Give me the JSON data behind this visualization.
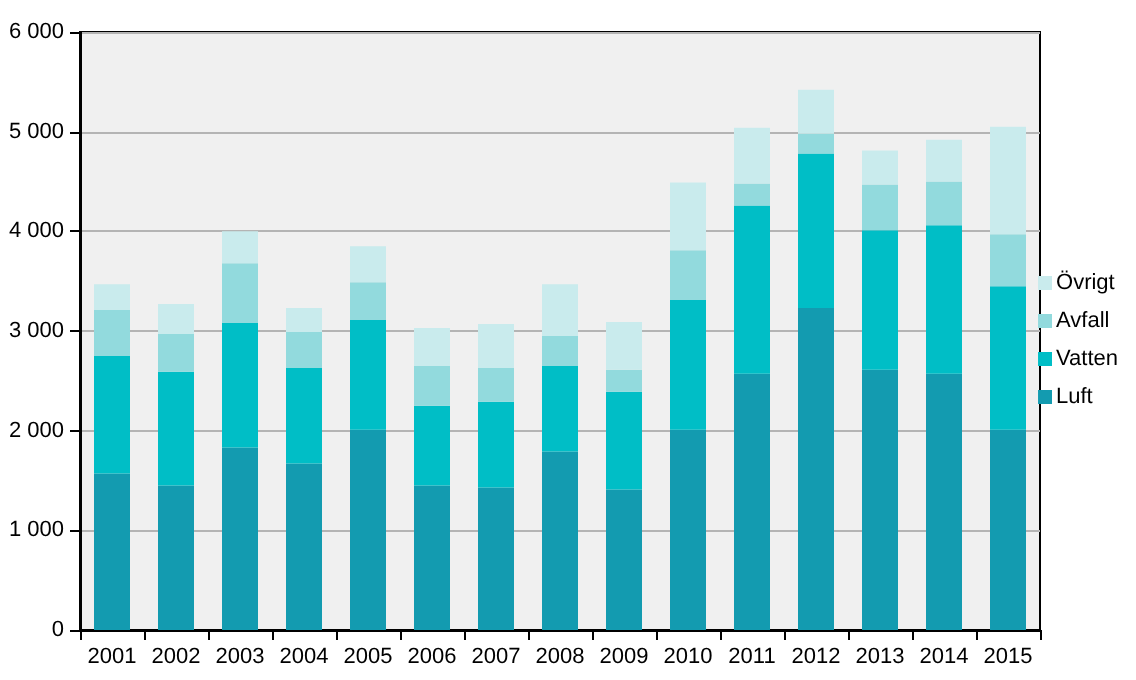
{
  "chart_data": {
    "type": "bar",
    "stacked": true,
    "categories": [
      "2001",
      "2002",
      "2003",
      "2004",
      "2005",
      "2006",
      "2007",
      "2008",
      "2009",
      "2010",
      "2011",
      "2012",
      "2013",
      "2014",
      "2015"
    ],
    "series": [
      {
        "name": "Luft",
        "color": "#139bb0",
        "values": [
          1570,
          1450,
          1830,
          1670,
          2010,
          1450,
          1430,
          1790,
          1410,
          2010,
          2570,
          3230,
          2610,
          2570,
          2010
        ]
      },
      {
        "name": "Vatten",
        "color": "#00bec6",
        "values": [
          1180,
          1140,
          1250,
          960,
          1100,
          800,
          860,
          860,
          980,
          1300,
          1690,
          1550,
          1400,
          1490,
          1440
        ]
      },
      {
        "name": "Avfall",
        "color": "#92dadd",
        "values": [
          460,
          380,
          600,
          360,
          380,
          400,
          340,
          300,
          220,
          500,
          220,
          200,
          460,
          440,
          520
        ]
      },
      {
        "name": "Övrigt",
        "color": "#c9ebed",
        "values": [
          260,
          300,
          320,
          240,
          360,
          380,
          440,
          520,
          480,
          680,
          560,
          440,
          340,
          420,
          1080
        ]
      }
    ],
    "ylim": [
      0,
      6000
    ],
    "yticks": [
      0,
      {
        "value": 1000,
        "label": "1 000"
      },
      {
        "value": 2000,
        "label": "2 000"
      },
      {
        "value": 3000,
        "label": "3 000"
      },
      {
        "value": 4000,
        "label": "4 000"
      },
      {
        "value": 5000,
        "label": "5 000"
      },
      {
        "value": 6000,
        "label": "6 000"
      }
    ],
    "grid": "y",
    "legend": "right"
  }
}
